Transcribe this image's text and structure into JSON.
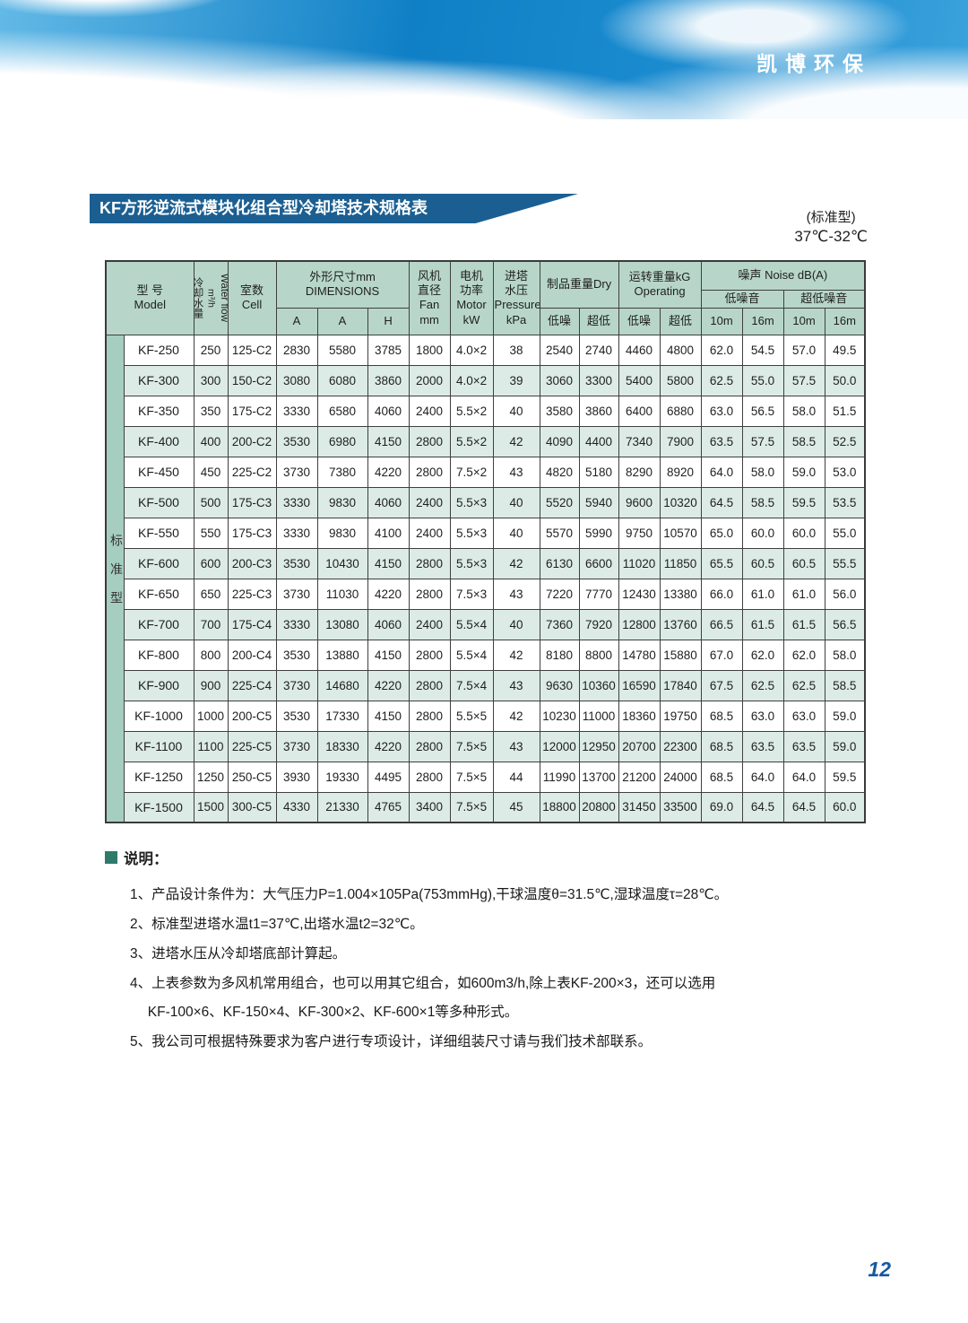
{
  "header": {
    "brand": "凯博环保"
  },
  "title": {
    "banner": "KF方形逆流式模块化组合型冷却塔技术规格表",
    "type_label": "(标准型)",
    "temp_range": "37℃-32℃"
  },
  "table": {
    "side_label": "标准型",
    "columns": {
      "model": "型 号\nModel",
      "water_flow_zh": "冷却水量",
      "water_flow_unit": "m³/h",
      "water_flow_en": "Water flow",
      "cell": "室数\nCell",
      "dimensions": "外形尺寸mm\nDIMENSIONS",
      "dim_a1": "A",
      "dim_a2": "A",
      "dim_h": "H",
      "fan": "风机\n直径\nFan\nmm",
      "motor": "电机\n功率\nMotor\nkW",
      "pressure": "进塔\n水压\nPressure\nkPa",
      "dry": "制品重量Dry",
      "operating": "运转重量kG\nOperating",
      "noise": "噪声 Noise dB(A)",
      "dry_low": "低噪",
      "dry_ultra": "超低",
      "op_low": "低噪",
      "op_ultra": "超低",
      "low_noise_group": "低噪音",
      "ultra_low_group": "超低噪音",
      "m10a": "10m",
      "m16a": "16m",
      "m10b": "10m",
      "m16b": "16m"
    },
    "rows": [
      [
        "KF-250",
        "250",
        "125-C2",
        "2830",
        "5580",
        "3785",
        "1800",
        "4.0×2",
        "38",
        "2540",
        "2740",
        "4460",
        "4800",
        "62.0",
        "54.5",
        "57.0",
        "49.5"
      ],
      [
        "KF-300",
        "300",
        "150-C2",
        "3080",
        "6080",
        "3860",
        "2000",
        "4.0×2",
        "39",
        "3060",
        "3300",
        "5400",
        "5800",
        "62.5",
        "55.0",
        "57.5",
        "50.0"
      ],
      [
        "KF-350",
        "350",
        "175-C2",
        "3330",
        "6580",
        "4060",
        "2400",
        "5.5×2",
        "40",
        "3580",
        "3860",
        "6400",
        "6880",
        "63.0",
        "56.5",
        "58.0",
        "51.5"
      ],
      [
        "KF-400",
        "400",
        "200-C2",
        "3530",
        "6980",
        "4150",
        "2800",
        "5.5×2",
        "42",
        "4090",
        "4400",
        "7340",
        "7900",
        "63.5",
        "57.5",
        "58.5",
        "52.5"
      ],
      [
        "KF-450",
        "450",
        "225-C2",
        "3730",
        "7380",
        "4220",
        "2800",
        "7.5×2",
        "43",
        "4820",
        "5180",
        "8290",
        "8920",
        "64.0",
        "58.0",
        "59.0",
        "53.0"
      ],
      [
        "KF-500",
        "500",
        "175-C3",
        "3330",
        "9830",
        "4060",
        "2400",
        "5.5×3",
        "40",
        "5520",
        "5940",
        "9600",
        "10320",
        "64.5",
        "58.5",
        "59.5",
        "53.5"
      ],
      [
        "KF-550",
        "550",
        "175-C3",
        "3330",
        "9830",
        "4100",
        "2400",
        "5.5×3",
        "40",
        "5570",
        "5990",
        "9750",
        "10570",
        "65.0",
        "60.0",
        "60.0",
        "55.0"
      ],
      [
        "KF-600",
        "600",
        "200-C3",
        "3530",
        "10430",
        "4150",
        "2800",
        "5.5×3",
        "42",
        "6130",
        "6600",
        "11020",
        "11850",
        "65.5",
        "60.5",
        "60.5",
        "55.5"
      ],
      [
        "KF-650",
        "650",
        "225-C3",
        "3730",
        "11030",
        "4220",
        "2800",
        "7.5×3",
        "43",
        "7220",
        "7770",
        "12430",
        "13380",
        "66.0",
        "61.0",
        "61.0",
        "56.0"
      ],
      [
        "KF-700",
        "700",
        "175-C4",
        "3330",
        "13080",
        "4060",
        "2400",
        "5.5×4",
        "40",
        "7360",
        "7920",
        "12800",
        "13760",
        "66.5",
        "61.5",
        "61.5",
        "56.5"
      ],
      [
        "KF-800",
        "800",
        "200-C4",
        "3530",
        "13880",
        "4150",
        "2800",
        "5.5×4",
        "42",
        "8180",
        "8800",
        "14780",
        "15880",
        "67.0",
        "62.0",
        "62.0",
        "58.0"
      ],
      [
        "KF-900",
        "900",
        "225-C4",
        "3730",
        "14680",
        "4220",
        "2800",
        "7.5×4",
        "43",
        "9630",
        "10360",
        "16590",
        "17840",
        "67.5",
        "62.5",
        "62.5",
        "58.5"
      ],
      [
        "KF-1000",
        "1000",
        "200-C5",
        "3530",
        "17330",
        "4150",
        "2800",
        "5.5×5",
        "42",
        "10230",
        "11000",
        "18360",
        "19750",
        "68.5",
        "63.0",
        "63.0",
        "59.0"
      ],
      [
        "KF-1100",
        "1100",
        "225-C5",
        "3730",
        "18330",
        "4220",
        "2800",
        "7.5×5",
        "43",
        "12000",
        "12950",
        "20700",
        "22300",
        "68.5",
        "63.5",
        "63.5",
        "59.0"
      ],
      [
        "KF-1250",
        "1250",
        "250-C5",
        "3930",
        "19330",
        "4495",
        "2800",
        "7.5×5",
        "44",
        "11990",
        "13700",
        "21200",
        "24000",
        "68.5",
        "64.0",
        "64.0",
        "59.5"
      ],
      [
        "KF-1500",
        "1500",
        "300-C5",
        "4330",
        "21330",
        "4765",
        "3400",
        "7.5×5",
        "45",
        "18800",
        "20800",
        "31450",
        "33500",
        "69.0",
        "64.5",
        "64.5",
        "60.0"
      ]
    ]
  },
  "notes": {
    "heading": "说明：",
    "items": [
      "1、产品设计条件为：大气压力P=1.004×105Pa(753mmHg),干球温度θ=31.5℃,湿球温度τ=28℃。",
      "2、标准型进塔水温t1=37℃,出塔水温t2=32℃。",
      "3、进塔水压从冷却塔底部计算起。",
      "4、上表参数为多风机常用组合，也可以用其它组合，如600m3/h,除上表KF-200×3，还可以选用\n　 KF-100×6、KF-150×4、KF-300×2、KF-600×1等多种形式。",
      "5、我公司可根据特殊要求为客户进行专项设计，详细组装尺寸请与我们技术部联系。"
    ]
  },
  "page": {
    "number": "12"
  }
}
